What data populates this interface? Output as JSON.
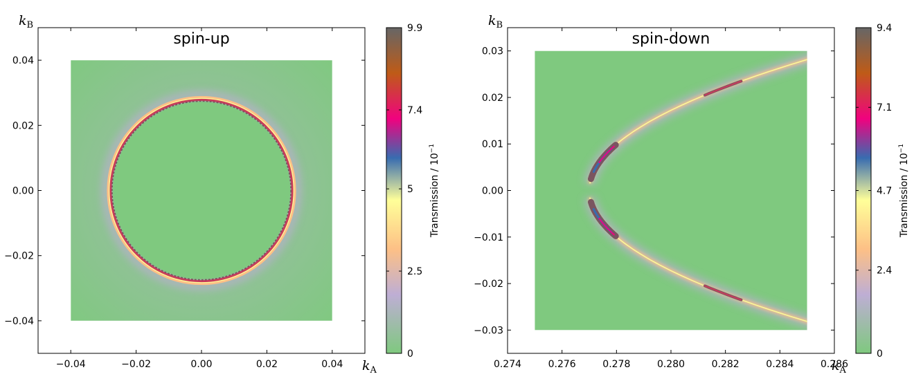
{
  "chart_data": [
    {
      "type": "heatmap",
      "title": "spin-up",
      "xlabel_main": "k",
      "xlabel_sub": "A",
      "ylabel_main": "k",
      "ylabel_sub": "B",
      "xlim": [
        -0.05,
        0.05
      ],
      "ylim": [
        -0.05,
        0.05
      ],
      "data_extent": {
        "x": [
          -0.04,
          0.04
        ],
        "y": [
          -0.04,
          0.04
        ]
      },
      "x_ticks": [
        -0.04,
        -0.02,
        0.0,
        0.02,
        0.04
      ],
      "x_tick_labels": [
        "−0.04",
        "−0.02",
        "0.00",
        "0.02",
        "0.04"
      ],
      "y_ticks": [
        -0.04,
        -0.02,
        0.0,
        0.02,
        0.04
      ],
      "y_tick_labels": [
        "−0.04",
        "−0.02",
        "0.00",
        "0.02",
        "0.04"
      ],
      "feature": {
        "shape": "circle",
        "center": [
          0.0,
          0.0
        ],
        "radius": 0.028
      },
      "colorbar": {
        "label_main": "Transmission / 10",
        "label_exp": "−1",
        "min": 0,
        "max": 9.9,
        "ticks": [
          0,
          2.5,
          5,
          7.4,
          9.9
        ],
        "tick_labels": [
          "0",
          "2.5",
          "5",
          "7.4",
          "9.9"
        ]
      }
    },
    {
      "type": "heatmap",
      "title": "spin-down",
      "xlabel_main": "k",
      "xlabel_sub": "A",
      "ylabel_main": "k",
      "ylabel_sub": "B",
      "xlim": [
        0.274,
        0.286
      ],
      "ylim": [
        -0.035,
        0.035
      ],
      "data_extent": {
        "x": [
          0.275,
          0.285
        ],
        "y": [
          -0.03,
          0.03
        ]
      },
      "x_ticks": [
        0.274,
        0.276,
        0.278,
        0.28,
        0.282,
        0.284,
        0.286
      ],
      "x_tick_labels": [
        "0.274",
        "0.276",
        "0.278",
        "0.280",
        "0.282",
        "0.284",
        "0.286"
      ],
      "y_ticks": [
        -0.03,
        -0.02,
        -0.01,
        0.0,
        0.01,
        0.02,
        0.03
      ],
      "y_tick_labels": [
        "−0.03",
        "−0.02",
        "−0.01",
        "0.00",
        "0.01",
        "0.02",
        "0.03"
      ],
      "feature": {
        "shape": "parabola",
        "vertex": [
          0.277,
          0.0
        ],
        "a": 0.0101
      },
      "colorbar": {
        "label_main": "Transmission / 10",
        "label_exp": "−1",
        "min": 0,
        "max": 9.4,
        "ticks": [
          0,
          2.4,
          4.7,
          7.1,
          9.4
        ],
        "tick_labels": [
          "0",
          "2.4",
          "4.7",
          "7.1",
          "9.4"
        ]
      }
    }
  ],
  "colormap": {
    "stops": [
      [
        0.0,
        "#7fc97f"
      ],
      [
        0.18,
        "#beaed4"
      ],
      [
        0.32,
        "#fdc086"
      ],
      [
        0.47,
        "#ffff99"
      ],
      [
        0.6,
        "#386cb0"
      ],
      [
        0.72,
        "#f0027f"
      ],
      [
        0.86,
        "#bf5b17"
      ],
      [
        1.0,
        "#666666"
      ]
    ],
    "background": "#7fc97f",
    "ridge_core": "#c83c5c",
    "ridge_dark": "#7a5560"
  }
}
